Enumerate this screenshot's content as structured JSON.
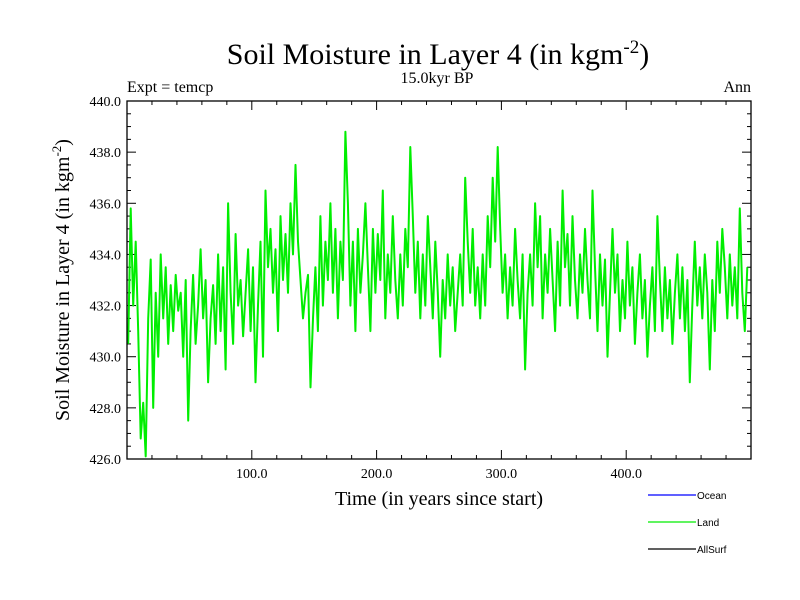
{
  "chart_data": {
    "type": "line",
    "title": "Soil Moisture in Layer 4 (in kgm",
    "title_sup": "-2",
    "title_close": ")",
    "subtitle": "15.0kyr BP",
    "left_label": "Expt = temcp",
    "right_label": "Ann",
    "xlabel": "Time (in years since start)",
    "ylabel": "Soil Moisture in Layer 4 (in kgm",
    "ylabel_sup": "-2",
    "ylabel_close": ")",
    "xlim": [
      0,
      500
    ],
    "ylim": [
      426,
      440
    ],
    "x_ticks": [
      100,
      200,
      300,
      400
    ],
    "x_tick_labels": [
      "100.0",
      "200.0",
      "300.0",
      "400.0"
    ],
    "y_ticks": [
      426,
      428,
      430,
      432,
      434,
      436,
      438,
      440
    ],
    "y_tick_labels": [
      "426.0",
      "428.0",
      "430.0",
      "432.0",
      "434.0",
      "436.0",
      "438.0",
      "440.0"
    ],
    "colors": {
      "ocean": "#0000ff",
      "land": "#00ee00",
      "allsurf": "#000000"
    },
    "legend": [
      {
        "name": "Ocean",
        "color": "#0000ff"
      },
      {
        "name": "Land",
        "color": "#00ee00"
      },
      {
        "name": "AllSurf",
        "color": "#000000"
      }
    ],
    "series": [
      {
        "name": "Land",
        "x_start": 1,
        "x_step": 2,
        "values": [
          430.5,
          435.8,
          432.0,
          434.5,
          431.0,
          426.8,
          428.2,
          426.1,
          431.5,
          433.8,
          428.0,
          432.5,
          430.0,
          434.0,
          431.5,
          433.5,
          430.5,
          432.8,
          431.0,
          433.2,
          431.8,
          432.5,
          430.0,
          433.0,
          427.5,
          431.0,
          433.2,
          430.5,
          432.0,
          434.2,
          431.5,
          433.0,
          429.0,
          431.5,
          432.8,
          430.5,
          434.0,
          431.0,
          433.5,
          429.5,
          436.0,
          432.5,
          430.5,
          434.8,
          432.0,
          433.0,
          430.8,
          432.5,
          434.2,
          431.0,
          433.5,
          429.0,
          432.0,
          434.5,
          430.0,
          436.5,
          433.5,
          435.0,
          432.5,
          434.2,
          431.0,
          435.5,
          433.0,
          434.8,
          432.5,
          436.0,
          434.0,
          437.5,
          434.5,
          433.0,
          431.5,
          432.5,
          433.2,
          428.8,
          431.5,
          433.5,
          431.0,
          435.5,
          432.0,
          434.5,
          433.0,
          436.0,
          432.5,
          435.0,
          431.5,
          434.5,
          433.0,
          438.8,
          436.0,
          432.0,
          434.5,
          431.0,
          435.0,
          432.5,
          434.0,
          436.0,
          433.5,
          431.0,
          435.0,
          432.5,
          434.8,
          433.0,
          436.5,
          431.5,
          434.0,
          432.5,
          435.5,
          433.0,
          431.5,
          434.0,
          432.0,
          435.0,
          433.5,
          438.2,
          435.5,
          432.5,
          434.5,
          431.5,
          434.0,
          432.0,
          435.5,
          433.5,
          431.5,
          434.5,
          432.5,
          430.0,
          433.0,
          431.5,
          434.0,
          432.0,
          433.5,
          431.0,
          432.5,
          434.0,
          432.0,
          437.0,
          434.5,
          432.5,
          435.0,
          432.0,
          433.5,
          431.5,
          434.0,
          432.0,
          435.5,
          433.5,
          437.0,
          434.5,
          438.2,
          435.0,
          432.5,
          434.0,
          431.5,
          433.5,
          432.0,
          435.0,
          433.0,
          431.5,
          434.0,
          429.5,
          432.5,
          434.0,
          432.0,
          436.0,
          433.5,
          435.5,
          431.5,
          434.0,
          432.5,
          435.0,
          433.0,
          431.0,
          434.5,
          432.0,
          436.5,
          433.5,
          434.8,
          432.0,
          435.5,
          433.0,
          431.5,
          434.0,
          432.5,
          435.0,
          433.0,
          431.5,
          436.5,
          433.5,
          431.0,
          434.0,
          432.0,
          433.8,
          430.0,
          432.5,
          435.0,
          432.5,
          434.0,
          431.0,
          433.0,
          431.5,
          434.5,
          432.0,
          433.5,
          430.5,
          432.5,
          434.0,
          431.5,
          433.0,
          430.0,
          432.0,
          433.5,
          431.0,
          435.5,
          433.0,
          431.0,
          433.5,
          431.5,
          433.0,
          430.5,
          432.5,
          434.0,
          431.5,
          433.5,
          431.0,
          433.0,
          429.0,
          432.0,
          434.5,
          432.0,
          433.5,
          431.5,
          434.0,
          432.5,
          429.5,
          433.0,
          431.0,
          434.5,
          432.5,
          435.0,
          433.5,
          431.5,
          434.0,
          432.0,
          433.5,
          431.5,
          435.8,
          432.5,
          431.0,
          433.5
        ],
        "color": "#00ee00"
      }
    ]
  }
}
